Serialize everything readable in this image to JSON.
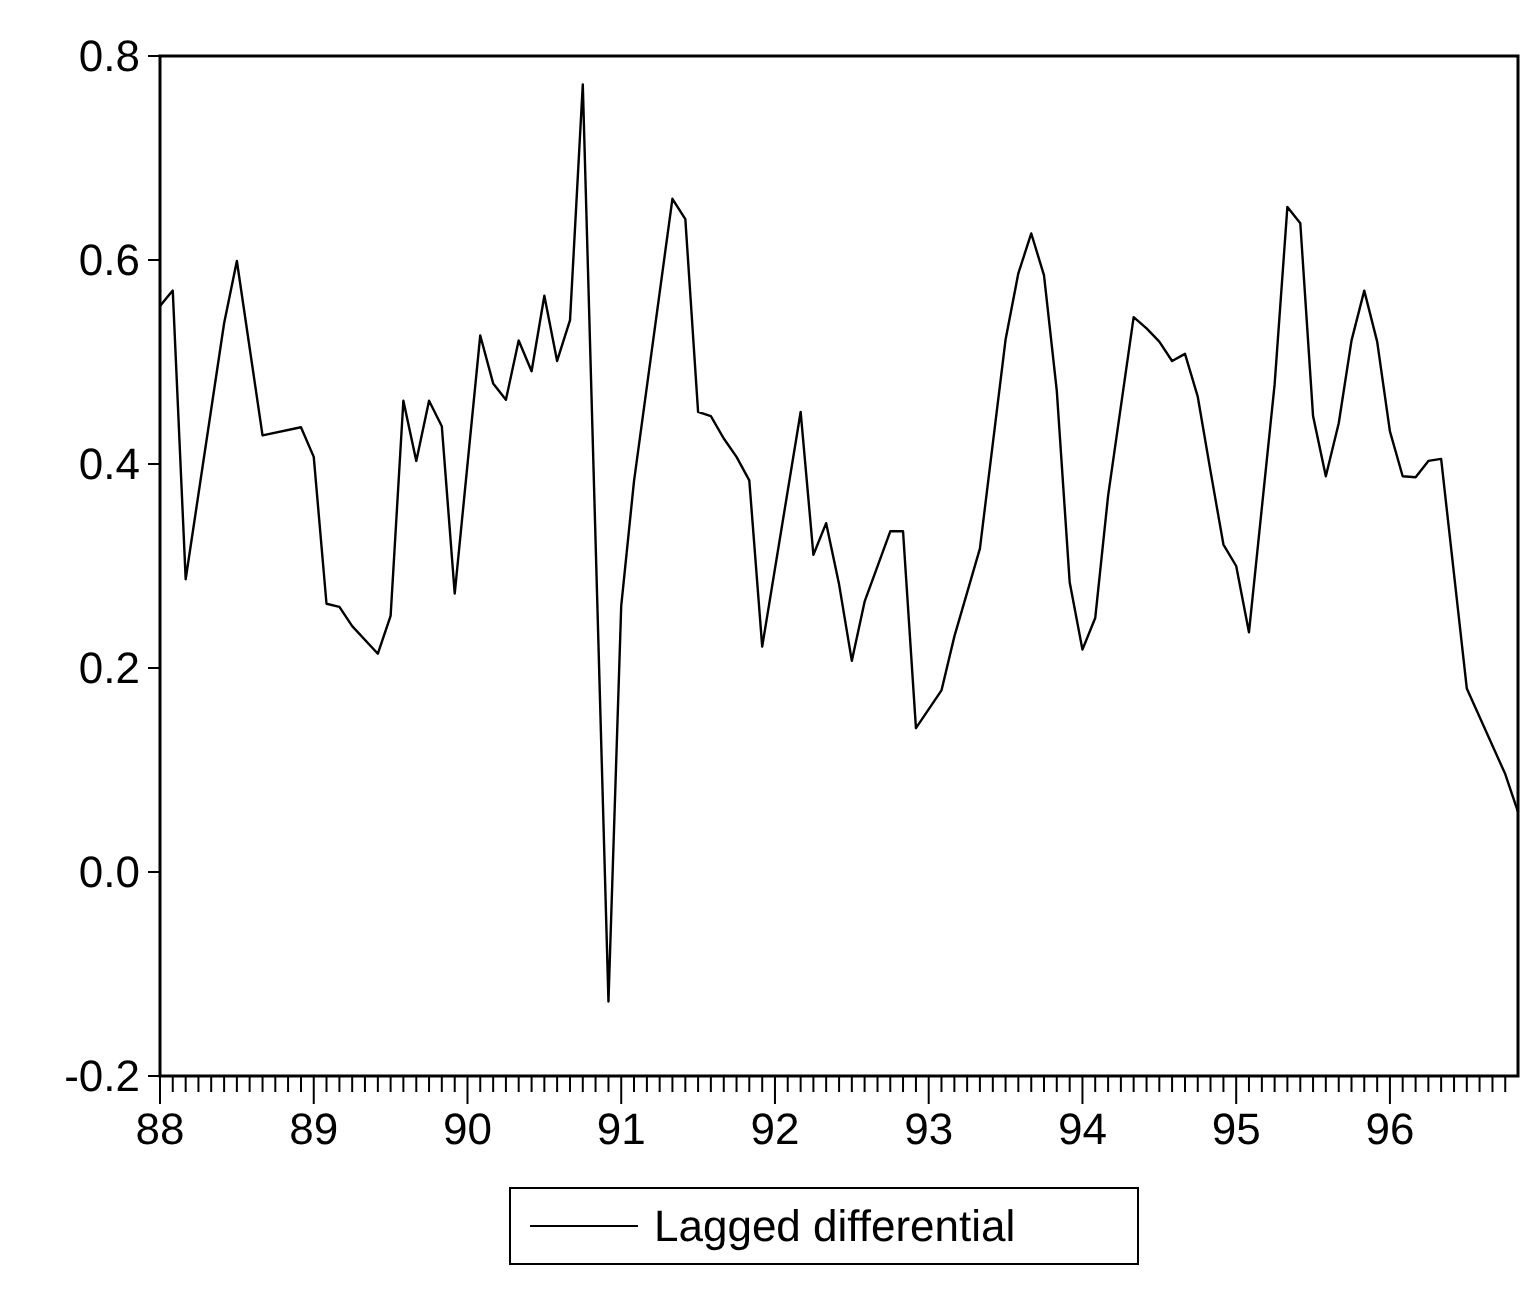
{
  "chart_data": {
    "type": "line",
    "series": [
      {
        "name": "Lagged differential",
        "color": "#000000",
        "x": [
          88,
          88.083,
          88.167,
          88.417,
          88.5,
          88.667,
          88.917,
          89,
          89.083,
          89.167,
          89.25,
          89.417,
          89.5,
          89.583,
          89.667,
          89.75,
          89.833,
          89.917,
          90.083,
          90.167,
          90.25,
          90.333,
          90.417,
          90.5,
          90.583,
          90.667,
          90.75,
          90.917,
          91,
          91.083,
          91.333,
          91.417,
          91.5,
          91.583,
          91.667,
          91.75,
          91.833,
          91.917,
          92.167,
          92.25,
          92.333,
          92.417,
          92.5,
          92.583,
          92.75,
          92.833,
          92.917,
          93.083,
          93.167,
          93.333,
          93.5,
          93.583,
          93.667,
          93.75,
          93.833,
          93.917,
          94,
          94.083,
          94.167,
          94.333,
          94.417,
          94.5,
          94.583,
          94.667,
          94.75,
          94.833,
          94.917,
          95,
          95.083,
          95.25,
          95.333,
          95.417,
          95.5,
          95.583,
          95.667,
          95.75,
          95.833,
          95.917,
          96,
          96.083,
          96.167,
          96.25,
          96.333,
          96.5,
          96.75,
          96.833
        ],
        "values": [
          0.555,
          0.57,
          0.287,
          0.538,
          0.599,
          0.428,
          0.436,
          0.407,
          0.263,
          0.26,
          0.241,
          0.214,
          0.251,
          0.462,
          0.403,
          0.462,
          0.437,
          0.273,
          0.526,
          0.479,
          0.463,
          0.521,
          0.491,
          0.565,
          0.501,
          0.541,
          0.772,
          -0.127,
          0.261,
          0.383,
          0.66,
          0.64,
          0.451,
          0.447,
          0.425,
          0.407,
          0.384,
          0.221,
          0.451,
          0.311,
          0.342,
          0.282,
          0.207,
          0.265,
          0.334,
          0.334,
          0.141,
          0.178,
          0.231,
          0.317,
          0.522,
          0.587,
          0.626,
          0.585,
          0.472,
          0.284,
          0.218,
          0.249,
          0.369,
          0.544,
          0.533,
          0.52,
          0.501,
          0.508,
          0.466,
          0.393,
          0.321,
          0.3,
          0.235,
          0.478,
          0.652,
          0.636,
          0.447,
          0.388,
          0.44,
          0.521,
          0.57,
          0.52,
          0.432,
          0.388,
          0.387,
          0.403,
          0.405,
          0.18,
          0.096,
          0.059
        ]
      }
    ],
    "xlim": [
      88,
      96.833
    ],
    "xticks": [
      88,
      {
        "value": 88.083,
        "label": null
      },
      {
        "value": 88.167,
        "label": null
      },
      {
        "value": 88.25,
        "label": null
      },
      {
        "value": 88.333,
        "label": null
      },
      {
        "value": 88.417,
        "label": null
      },
      {
        "value": 88.5,
        "label": null
      },
      {
        "value": 88.583,
        "label": null
      },
      {
        "value": 88.667,
        "label": null
      },
      {
        "value": 88.75,
        "label": null
      },
      {
        "value": 88.833,
        "label": null
      },
      {
        "value": 88.917,
        "label": null
      },
      89,
      {
        "value": 89.083,
        "label": null
      },
      {
        "value": 89.167,
        "label": null
      },
      {
        "value": 89.25,
        "label": null
      },
      {
        "value": 89.333,
        "label": null
      },
      {
        "value": 89.417,
        "label": null
      },
      {
        "value": 89.5,
        "label": null
      },
      {
        "value": 89.583,
        "label": null
      },
      {
        "value": 89.667,
        "label": null
      },
      {
        "value": 89.75,
        "label": null
      },
      {
        "value": 89.833,
        "label": null
      },
      {
        "value": 89.917,
        "label": null
      },
      90,
      {
        "value": 90.083,
        "label": null
      },
      {
        "value": 90.167,
        "label": null
      },
      {
        "value": 90.25,
        "label": null
      },
      {
        "value": 90.333,
        "label": null
      },
      {
        "value": 90.417,
        "label": null
      },
      {
        "value": 90.5,
        "label": null
      },
      {
        "value": 90.583,
        "label": null
      },
      {
        "value": 90.667,
        "label": null
      },
      {
        "value": 90.75,
        "label": null
      },
      {
        "value": 90.833,
        "label": null
      },
      {
        "value": 90.917,
        "label": null
      },
      91,
      {
        "value": 91.083,
        "label": null
      },
      {
        "value": 91.167,
        "label": null
      },
      {
        "value": 91.25,
        "label": null
      },
      {
        "value": 91.333,
        "label": null
      },
      {
        "value": 91.417,
        "label": null
      },
      {
        "value": 91.5,
        "label": null
      },
      {
        "value": 91.583,
        "label": null
      },
      {
        "value": 91.667,
        "label": null
      },
      {
        "value": 91.75,
        "label": null
      },
      {
        "value": 91.833,
        "label": null
      },
      {
        "value": 91.917,
        "label": null
      },
      92,
      {
        "value": 92.083,
        "label": null
      },
      {
        "value": 92.167,
        "label": null
      },
      {
        "value": 92.25,
        "label": null
      },
      {
        "value": 92.333,
        "label": null
      },
      {
        "value": 92.417,
        "label": null
      },
      {
        "value": 92.5,
        "label": null
      },
      {
        "value": 92.583,
        "label": null
      },
      {
        "value": 92.667,
        "label": null
      },
      {
        "value": 92.75,
        "label": null
      },
      {
        "value": 92.833,
        "label": null
      },
      {
        "value": 92.917,
        "label": null
      },
      93,
      {
        "value": 93.083,
        "label": null
      },
      {
        "value": 93.167,
        "label": null
      },
      {
        "value": 93.25,
        "label": null
      },
      {
        "value": 93.333,
        "label": null
      },
      {
        "value": 93.417,
        "label": null
      },
      {
        "value": 93.5,
        "label": null
      },
      {
        "value": 93.583,
        "label": null
      },
      {
        "value": 93.667,
        "label": null
      },
      {
        "value": 93.75,
        "label": null
      },
      {
        "value": 93.833,
        "label": null
      },
      {
        "value": 93.917,
        "label": null
      },
      94,
      {
        "value": 94.083,
        "label": null
      },
      {
        "value": 94.167,
        "label": null
      },
      {
        "value": 94.25,
        "label": null
      },
      {
        "value": 94.333,
        "label": null
      },
      {
        "value": 94.417,
        "label": null
      },
      {
        "value": 94.5,
        "label": null
      },
      {
        "value": 94.583,
        "label": null
      },
      {
        "value": 94.667,
        "label": null
      },
      {
        "value": 94.75,
        "label": null
      },
      {
        "value": 94.833,
        "label": null
      },
      {
        "value": 94.917,
        "label": null
      },
      95,
      {
        "value": 95.083,
        "label": null
      },
      {
        "value": 95.167,
        "label": null
      },
      {
        "value": 95.25,
        "label": null
      },
      {
        "value": 95.333,
        "label": null
      },
      {
        "value": 95.417,
        "label": null
      },
      {
        "value": 95.5,
        "label": null
      },
      {
        "value": 95.583,
        "label": null
      },
      {
        "value": 95.667,
        "label": null
      },
      {
        "value": 95.75,
        "label": null
      },
      {
        "value": 95.833,
        "label": null
      },
      {
        "value": 95.917,
        "label": null
      },
      96,
      {
        "value": 96.083,
        "label": null
      },
      {
        "value": 96.167,
        "label": null
      },
      {
        "value": 96.25,
        "label": null
      },
      {
        "value": 96.333,
        "label": null
      },
      {
        "value": 96.417,
        "label": null
      },
      {
        "value": 96.5,
        "label": null
      },
      {
        "value": 96.583,
        "label": null
      },
      {
        "value": 96.667,
        "label": null
      },
      {
        "value": 96.75,
        "label": null
      }
    ],
    "ylim": [
      -0.2,
      0.8
    ],
    "yticks": [
      {
        "value": -0.2,
        "label": "-0.2"
      },
      {
        "value": 0,
        "label": "0.0"
      },
      0.2,
      0.4,
      0.6,
      0.8
    ],
    "grid": false,
    "legend": "bottom",
    "line_style": "solid"
  }
}
